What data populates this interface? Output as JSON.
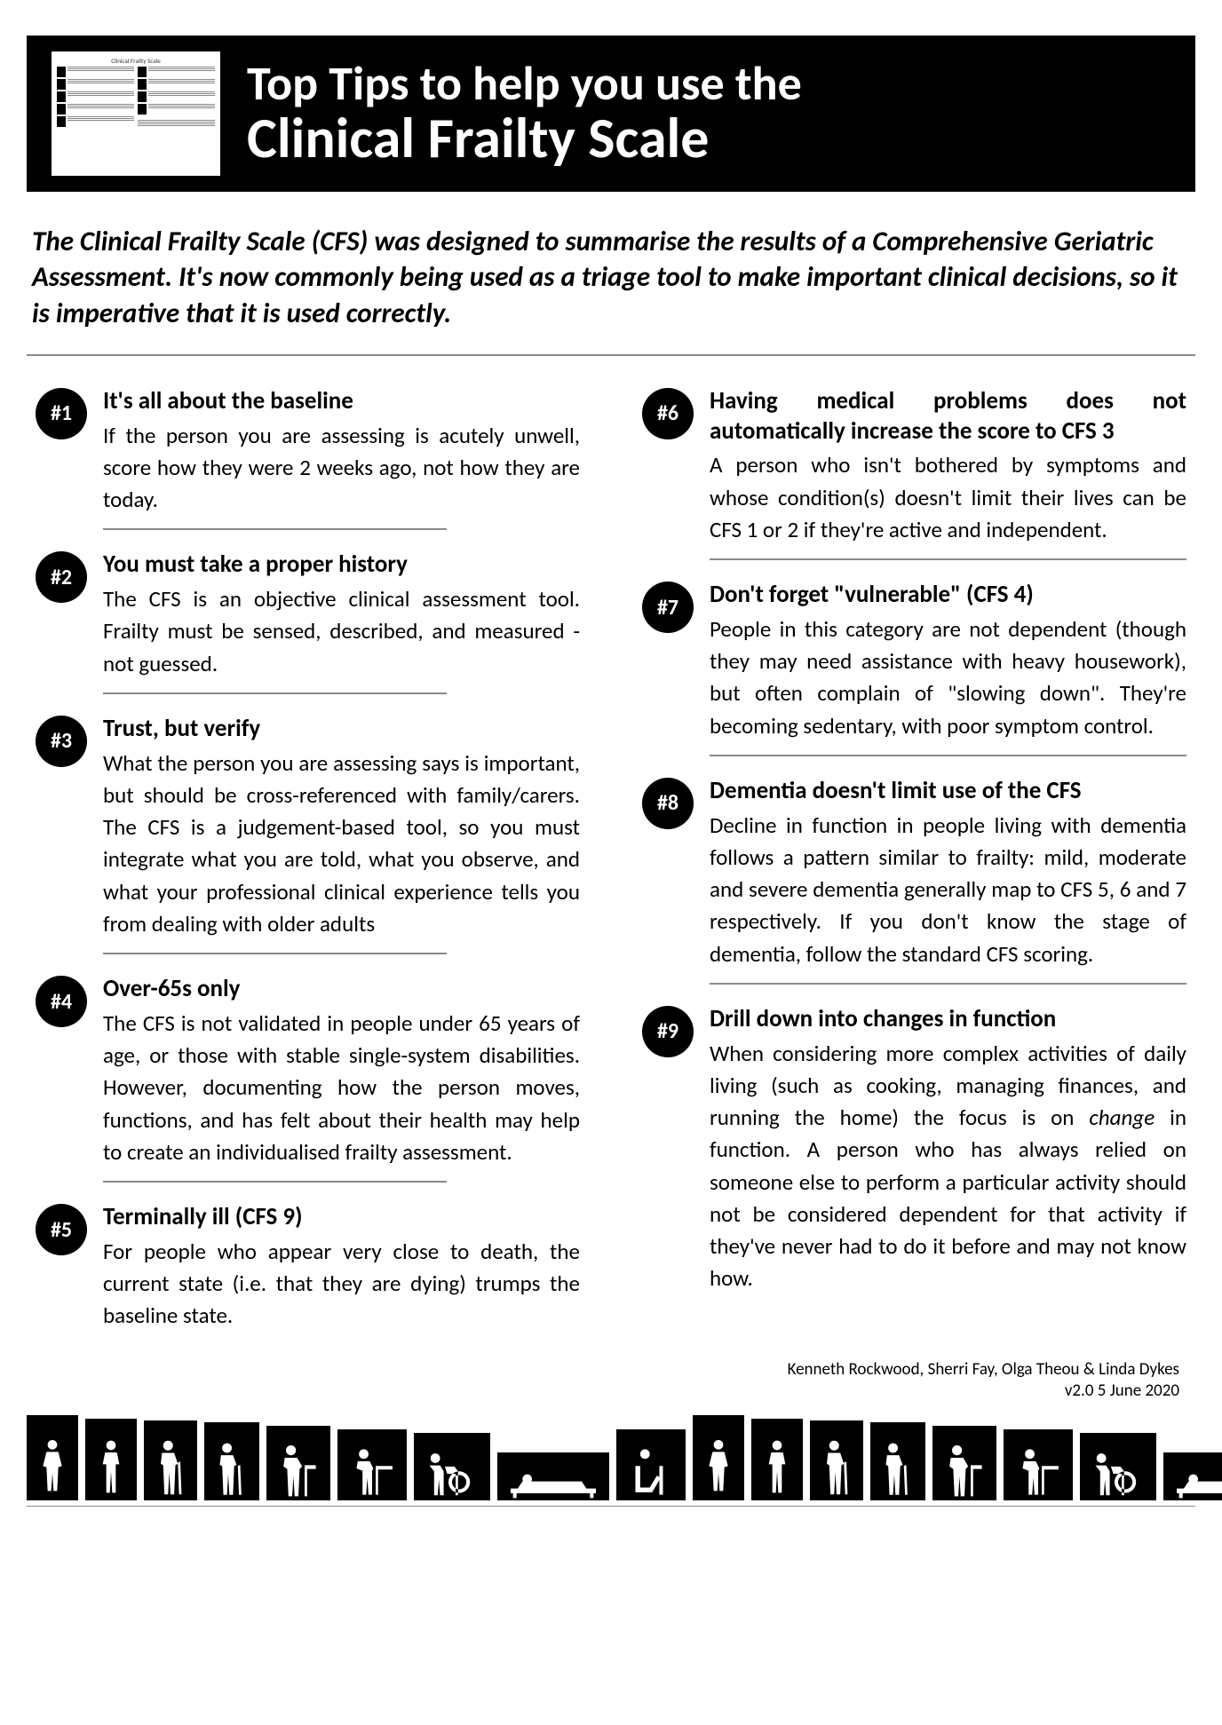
{
  "header": {
    "title_line1": "Top Tips to help you use the",
    "title_line2": "Clinical Frailty Scale"
  },
  "intro": "The Clinical Frailty Scale (CFS) was designed to summarise the results of a Comprehensive Geriatric Assessment. It's now commonly being used as a triage tool to make important clinical decisions, so it is imperative that it is used correctly.",
  "tips_left": [
    {
      "num": "#1",
      "title": "It's all about the baseline",
      "text": "If the person you are assessing is acutely unwell, score how they were 2 weeks ago, not how they are today."
    },
    {
      "num": "#2",
      "title": "You must take a proper history",
      "text": "The CFS is an objective clinical assessment tool. Frailty must be sensed, described, and measured - not guessed."
    },
    {
      "num": "#3",
      "title": "Trust, but verify",
      "text": "What the person you are assessing says is important, but should be cross-referenced with family/carers. The CFS is a judgement-based tool, so you must integrate what you are told, what you observe, and what your professional clinical experience tells you from dealing with older adults"
    },
    {
      "num": "#4",
      "title": "Over-65s only",
      "text": "The CFS is not validated in people under 65 years of age, or those with stable single-system disabilities. However, documenting how the person moves, functions, and has felt about their health may help to create an individualised frailty assessment."
    },
    {
      "num": "#5",
      "title": "Terminally ill (CFS 9)",
      "text": "For people who appear very close to death, the current state (i.e. that they are dying) trumps the baseline state."
    }
  ],
  "tips_right": [
    {
      "num": "#6",
      "title": "Having medical problems does not automatically increase the score to CFS 3",
      "title_justify": true,
      "text": "A person who isn't bothered by symptoms and whose condition(s) doesn't limit their lives can be CFS 1 or 2 if they're active and independent."
    },
    {
      "num": "#7",
      "title": "Don't forget \"vulnerable\" (CFS 4)",
      "text": "People in this category are not dependent (though they may need assistance with heavy housework), but often complain of \"slowing down\". They're becoming sedentary, with poor symptom control."
    },
    {
      "num": "#8",
      "title": "Dementia doesn't limit use of the CFS",
      "text": "Decline in function in people living with dementia follows a pattern similar to frailty: mild, moderate and severe dementia generally map to CFS 5, 6 and 7 respectively. If you don't know the stage of dementia, follow the standard CFS scoring."
    },
    {
      "num": "#9",
      "title": "Drill down into changes in function",
      "text_html": "When considering more complex activities of daily living (such as cooking, managing finances, and running the home) the focus is on <em>change</em> in function. A person who has always relied on someone else to perform a particular activity should not be considered dependent for that activity if they've never had to do it before and may not know how."
    }
  ],
  "credits": {
    "authors": "Kenneth Rockwood, Sherri Fay, Olga Theou & Linda Dykes",
    "version": "v2.0 5 June 2020"
  },
  "colors": {
    "bg": "#ffffff",
    "fg": "#000000",
    "divider": "#8a8a8a"
  }
}
